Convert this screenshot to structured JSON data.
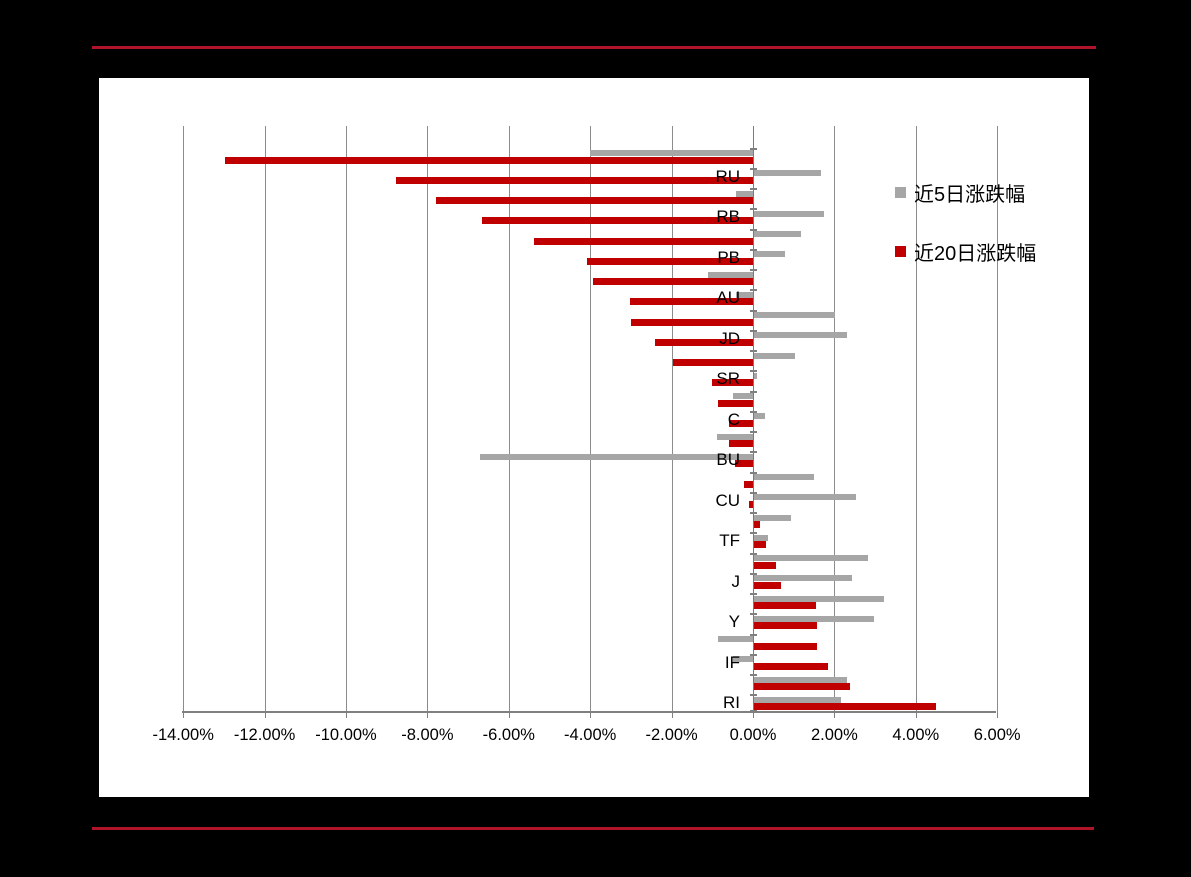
{
  "page": {
    "background_color": "#000000",
    "panel_color": "#ffffff",
    "rule_color": "#b01428"
  },
  "chart_data": {
    "type": "bar",
    "orientation": "horizontal",
    "title": "",
    "categories": [
      "",
      "RU",
      "",
      "RB",
      "",
      "PB",
      "",
      "AU",
      "",
      "JD",
      "",
      "SR",
      "",
      "C",
      "",
      "BU",
      "",
      "CU",
      "",
      "TF",
      "",
      "J",
      "",
      "Y",
      "",
      "IF",
      "",
      "RI"
    ],
    "series": [
      {
        "name": "近5日涨跌幅",
        "color": "#a6a6a6",
        "values": [
          -4.0,
          1.64,
          -0.42,
          1.72,
          1.15,
          0.77,
          -1.1,
          -0.41,
          1.98,
          2.28,
          1.0,
          0.07,
          -0.48,
          0.27,
          -0.89,
          -6.7,
          1.47,
          2.5,
          0.92,
          0.35,
          2.81,
          2.4,
          3.19,
          2.94,
          -0.86,
          -0.48,
          2.28,
          2.14
        ]
      },
      {
        "name": "近20日涨跌幅",
        "color": "#c00000",
        "values": [
          -12.97,
          -8.76,
          -7.79,
          -6.65,
          -5.38,
          -4.09,
          -3.92,
          -3.03,
          -2.99,
          -2.4,
          -1.96,
          -1.0,
          -0.85,
          -0.6,
          -0.59,
          -0.44,
          -0.21,
          -0.11,
          0.15,
          0.29,
          0.53,
          0.66,
          1.52,
          1.54,
          1.56,
          1.82,
          2.36,
          4.46
        ]
      }
    ],
    "x_axis": {
      "min": -14,
      "max": 6,
      "step": 2,
      "tick_labels": [
        "-14.00%",
        "-12.00%",
        "-10.00%",
        "-8.00%",
        "-6.00%",
        "-4.00%",
        "-2.00%",
        "0.00%",
        "2.00%",
        "4.00%",
        "6.00%"
      ]
    },
    "grid": true,
    "legend_position": "top-right"
  }
}
